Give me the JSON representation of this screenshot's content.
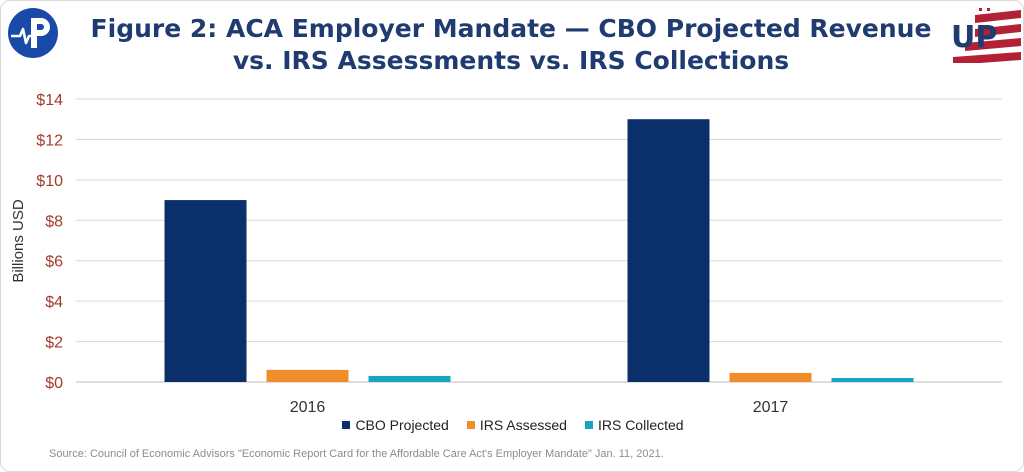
{
  "title_lines": [
    "Figure 2: ACA Employer Mandate  — CBO Projected Revenue",
    "vs. IRS Assessments vs. IRS Collections"
  ],
  "source": "Source: Council of Economic Advisors \"Economic Report Card for the Affordable Care Act's Employer Mandate\" Jan. 11, 2021.",
  "logos": {
    "left": "p-pulse-logo",
    "right": "up-flag-logo",
    "right_text": "UP"
  },
  "colors": {
    "title": "#1f3b70",
    "axis_ticks": "#a33b2c",
    "grid": "#d9d9d9",
    "cbo": "#0a2f6b",
    "irs_assessed": "#f28c28",
    "irs_collected": "#17a3c2",
    "logo_blue": "#1a4aa8",
    "logo_red": "#b22234"
  },
  "chart_data": {
    "type": "bar",
    "title": "Figure 2: ACA Employer Mandate  — CBO Projected Revenue vs. IRS Assessments vs. IRS Collections",
    "xlabel": "",
    "ylabel": "Billions USD",
    "ylim": [
      0,
      14
    ],
    "yticks": [
      0,
      2,
      4,
      6,
      8,
      10,
      12,
      14
    ],
    "ytick_labels": [
      "$0",
      "$2",
      "$4",
      "$6",
      "$8",
      "$10",
      "$12",
      "$14"
    ],
    "categories": [
      "2016",
      "2017"
    ],
    "series": [
      {
        "name": "CBO Projected",
        "values": [
          9.0,
          13.0
        ],
        "color": "#0a2f6b"
      },
      {
        "name": "IRS Assessed",
        "values": [
          0.6,
          0.45
        ],
        "color": "#f28c28"
      },
      {
        "name": "IRS Collected",
        "values": [
          0.3,
          0.2
        ],
        "color": "#17a3c2"
      }
    ],
    "grid": true,
    "legend": "bottom"
  }
}
